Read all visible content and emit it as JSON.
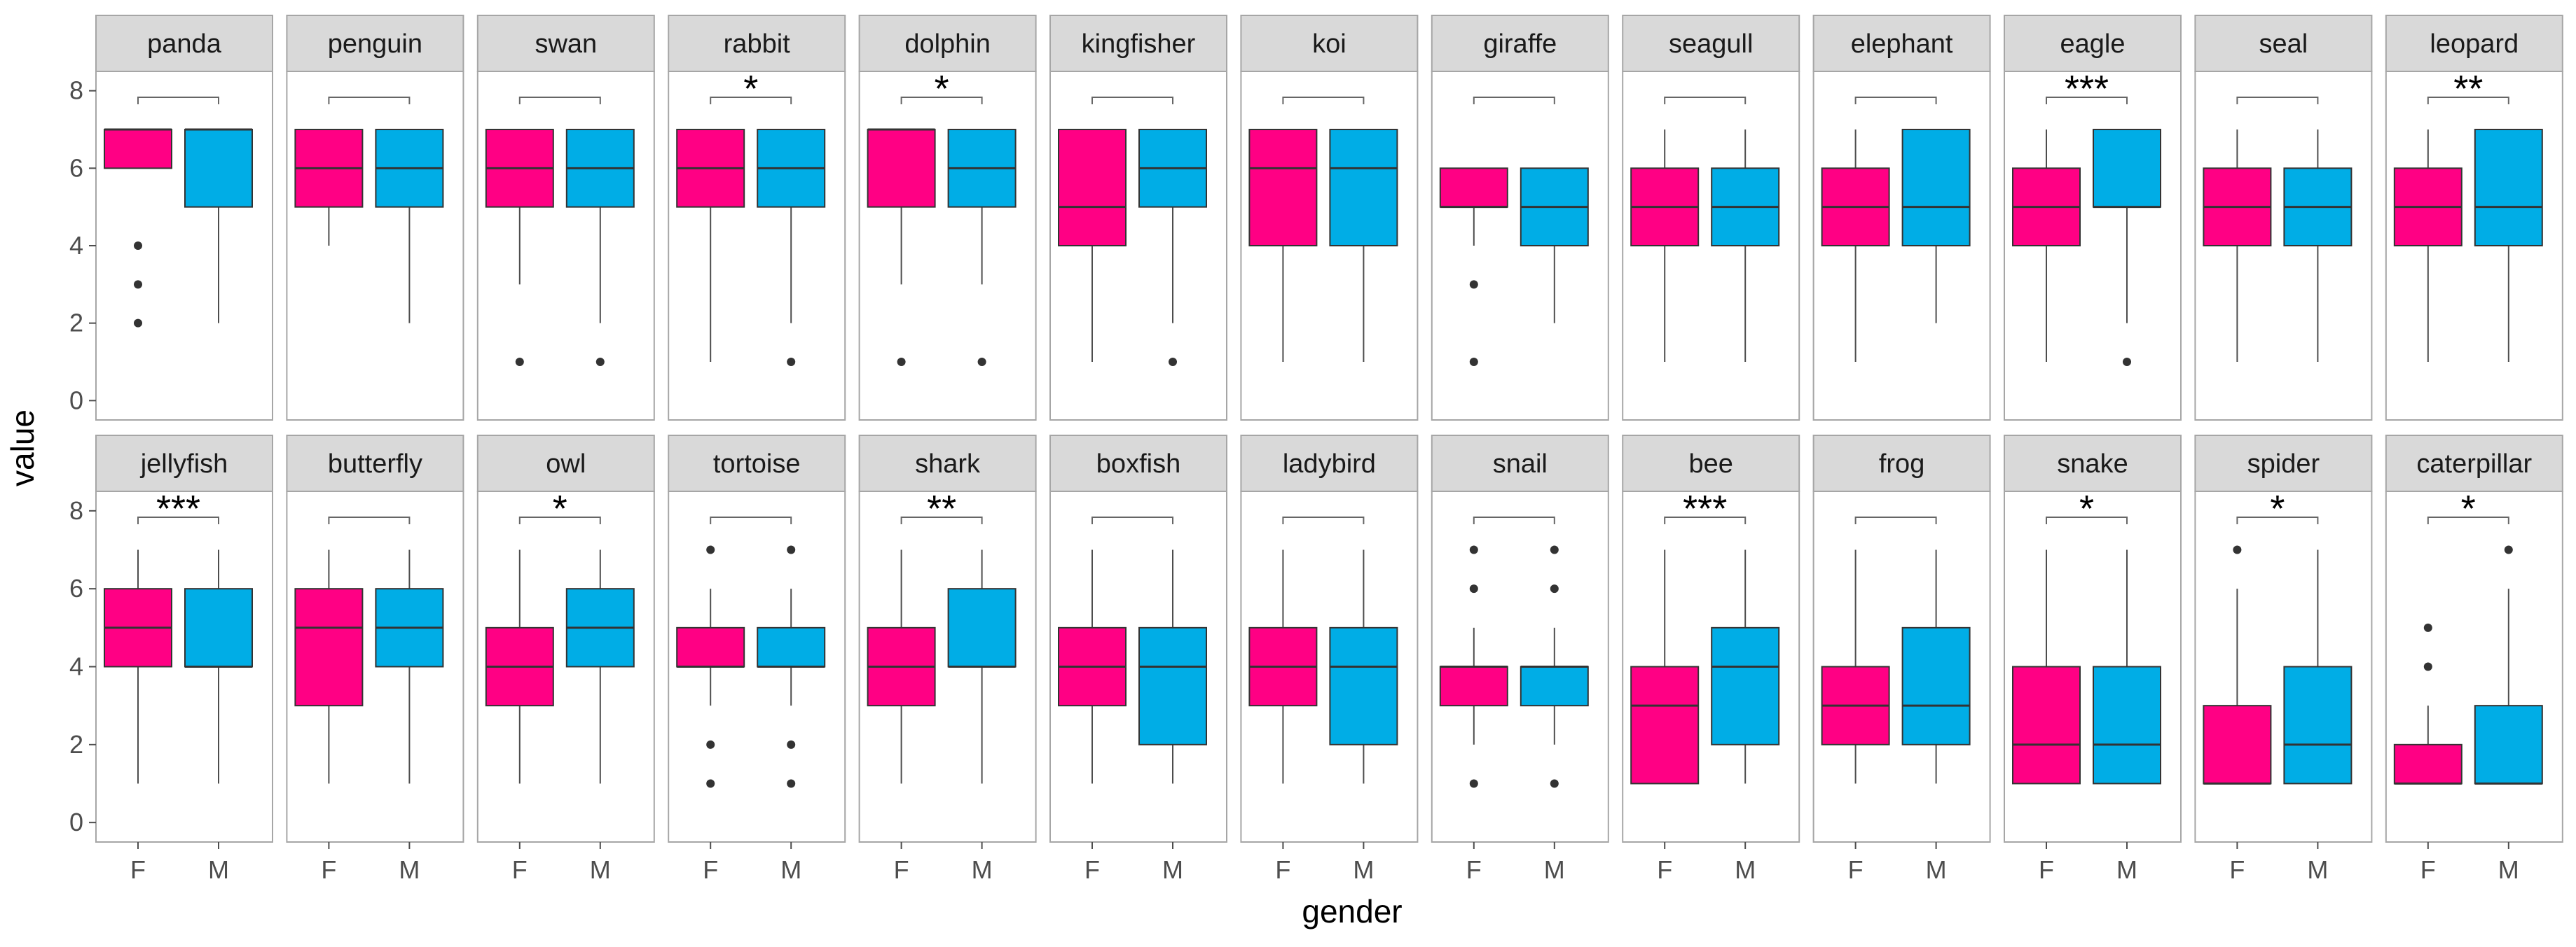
{
  "chart_data": {
    "type": "boxplot",
    "facet_layout": {
      "rows": 2,
      "cols": 13
    },
    "xlabel": "gender",
    "ylabel": "value",
    "categories": [
      "F",
      "M"
    ],
    "ylim": [
      -0.5,
      8.5
    ],
    "yticks": [
      0,
      2,
      4,
      6,
      8
    ],
    "colors": {
      "F": "#ff0084",
      "M": "#00ade6"
    },
    "panels": [
      {
        "name": "panda",
        "sig": "",
        "F": {
          "lower": 6,
          "q1": 6,
          "median": 7,
          "q3": 7,
          "upper": 7,
          "outliers": [
            2,
            3,
            4
          ]
        },
        "M": {
          "lower": 2,
          "q1": 5,
          "median": 7,
          "q3": 7,
          "upper": 7,
          "outliers": []
        }
      },
      {
        "name": "penguin",
        "sig": "",
        "F": {
          "lower": 4,
          "q1": 5,
          "median": 6,
          "q3": 7,
          "upper": 7,
          "outliers": []
        },
        "M": {
          "lower": 2,
          "q1": 5,
          "median": 6,
          "q3": 7,
          "upper": 7,
          "outliers": []
        }
      },
      {
        "name": "swan",
        "sig": "",
        "F": {
          "lower": 3,
          "q1": 5,
          "median": 6,
          "q3": 7,
          "upper": 7,
          "outliers": [
            1
          ]
        },
        "M": {
          "lower": 2,
          "q1": 5,
          "median": 6,
          "q3": 7,
          "upper": 7,
          "outliers": [
            1
          ]
        }
      },
      {
        "name": "rabbit",
        "sig": "*",
        "F": {
          "lower": 1,
          "q1": 5,
          "median": 6,
          "q3": 7,
          "upper": 7,
          "outliers": []
        },
        "M": {
          "lower": 2,
          "q1": 5,
          "median": 6,
          "q3": 7,
          "upper": 7,
          "outliers": [
            1
          ]
        }
      },
      {
        "name": "dolphin",
        "sig": "*",
        "F": {
          "lower": 3,
          "q1": 5,
          "median": 7,
          "q3": 7,
          "upper": 7,
          "outliers": [
            1
          ]
        },
        "M": {
          "lower": 3,
          "q1": 5,
          "median": 6,
          "q3": 7,
          "upper": 7,
          "outliers": [
            1
          ]
        }
      },
      {
        "name": "kingfisher",
        "sig": "",
        "F": {
          "lower": 1,
          "q1": 4,
          "median": 5,
          "q3": 7,
          "upper": 7,
          "outliers": []
        },
        "M": {
          "lower": 2,
          "q1": 5,
          "median": 6,
          "q3": 7,
          "upper": 7,
          "outliers": [
            1
          ]
        }
      },
      {
        "name": "koi",
        "sig": "",
        "F": {
          "lower": 1,
          "q1": 4,
          "median": 6,
          "q3": 7,
          "upper": 7,
          "outliers": []
        },
        "M": {
          "lower": 1,
          "q1": 4,
          "median": 6,
          "q3": 7,
          "upper": 7,
          "outliers": []
        }
      },
      {
        "name": "giraffe",
        "sig": "",
        "F": {
          "lower": 4,
          "q1": 5,
          "median": 5,
          "q3": 6,
          "upper": 6,
          "outliers": [
            1,
            3
          ]
        },
        "M": {
          "lower": 2,
          "q1": 4,
          "median": 5,
          "q3": 6,
          "upper": 6,
          "outliers": []
        }
      },
      {
        "name": "seagull",
        "sig": "",
        "F": {
          "lower": 1,
          "q1": 4,
          "median": 5,
          "q3": 6,
          "upper": 7,
          "outliers": []
        },
        "M": {
          "lower": 1,
          "q1": 4,
          "median": 5,
          "q3": 6,
          "upper": 7,
          "outliers": []
        }
      },
      {
        "name": "elephant",
        "sig": "",
        "F": {
          "lower": 1,
          "q1": 4,
          "median": 5,
          "q3": 6,
          "upper": 7,
          "outliers": []
        },
        "M": {
          "lower": 2,
          "q1": 4,
          "median": 5,
          "q3": 7,
          "upper": 7,
          "outliers": []
        }
      },
      {
        "name": "eagle",
        "sig": "***",
        "F": {
          "lower": 1,
          "q1": 4,
          "median": 5,
          "q3": 6,
          "upper": 7,
          "outliers": []
        },
        "M": {
          "lower": 2,
          "q1": 5,
          "median": 5,
          "q3": 7,
          "upper": 7,
          "outliers": [
            1
          ]
        }
      },
      {
        "name": "seal",
        "sig": "",
        "F": {
          "lower": 1,
          "q1": 4,
          "median": 5,
          "q3": 6,
          "upper": 7,
          "outliers": []
        },
        "M": {
          "lower": 1,
          "q1": 4,
          "median": 5,
          "q3": 6,
          "upper": 7,
          "outliers": []
        }
      },
      {
        "name": "leopard",
        "sig": "**",
        "F": {
          "lower": 1,
          "q1": 4,
          "median": 5,
          "q3": 6,
          "upper": 7,
          "outliers": []
        },
        "M": {
          "lower": 1,
          "q1": 4,
          "median": 5,
          "q3": 7,
          "upper": 7,
          "outliers": []
        }
      },
      {
        "name": "jellyfish",
        "sig": "***",
        "F": {
          "lower": 1,
          "q1": 4,
          "median": 5,
          "q3": 6,
          "upper": 7,
          "outliers": []
        },
        "M": {
          "lower": 1,
          "q1": 4,
          "median": 4,
          "q3": 6,
          "upper": 7,
          "outliers": []
        }
      },
      {
        "name": "butterfly",
        "sig": "",
        "F": {
          "lower": 1,
          "q1": 3,
          "median": 5,
          "q3": 6,
          "upper": 7,
          "outliers": []
        },
        "M": {
          "lower": 1,
          "q1": 4,
          "median": 5,
          "q3": 6,
          "upper": 7,
          "outliers": []
        }
      },
      {
        "name": "owl",
        "sig": "*",
        "F": {
          "lower": 1,
          "q1": 3,
          "median": 4,
          "q3": 5,
          "upper": 7,
          "outliers": []
        },
        "M": {
          "lower": 1,
          "q1": 4,
          "median": 5,
          "q3": 6,
          "upper": 7,
          "outliers": []
        }
      },
      {
        "name": "tortoise",
        "sig": "",
        "F": {
          "lower": 3,
          "q1": 4,
          "median": 4,
          "q3": 5,
          "upper": 6,
          "outliers": [
            1,
            2,
            7
          ]
        },
        "M": {
          "lower": 3,
          "q1": 4,
          "median": 4,
          "q3": 5,
          "upper": 6,
          "outliers": [
            1,
            2,
            7
          ]
        }
      },
      {
        "name": "shark",
        "sig": "**",
        "F": {
          "lower": 1,
          "q1": 3,
          "median": 4,
          "q3": 5,
          "upper": 7,
          "outliers": []
        },
        "M": {
          "lower": 1,
          "q1": 4,
          "median": 4,
          "q3": 6,
          "upper": 7,
          "outliers": []
        }
      },
      {
        "name": "boxfish",
        "sig": "",
        "F": {
          "lower": 1,
          "q1": 3,
          "median": 4,
          "q3": 5,
          "upper": 7,
          "outliers": []
        },
        "M": {
          "lower": 1,
          "q1": 2,
          "median": 4,
          "q3": 5,
          "upper": 7,
          "outliers": []
        }
      },
      {
        "name": "ladybird",
        "sig": "",
        "F": {
          "lower": 1,
          "q1": 3,
          "median": 4,
          "q3": 5,
          "upper": 7,
          "outliers": []
        },
        "M": {
          "lower": 1,
          "q1": 2,
          "median": 4,
          "q3": 5,
          "upper": 7,
          "outliers": []
        }
      },
      {
        "name": "snail",
        "sig": "",
        "F": {
          "lower": 2,
          "q1": 3,
          "median": 4,
          "q3": 4,
          "upper": 5,
          "outliers": [
            1,
            6,
            7
          ]
        },
        "M": {
          "lower": 2,
          "q1": 3,
          "median": 4,
          "q3": 4,
          "upper": 5,
          "outliers": [
            1,
            6,
            7
          ]
        }
      },
      {
        "name": "bee",
        "sig": "***",
        "F": {
          "lower": 1,
          "q1": 1,
          "median": 3,
          "q3": 4,
          "upper": 7,
          "outliers": []
        },
        "M": {
          "lower": 1,
          "q1": 2,
          "median": 4,
          "q3": 5,
          "upper": 7,
          "outliers": []
        }
      },
      {
        "name": "frog",
        "sig": "",
        "F": {
          "lower": 1,
          "q1": 2,
          "median": 3,
          "q3": 4,
          "upper": 7,
          "outliers": []
        },
        "M": {
          "lower": 1,
          "q1": 2,
          "median": 3,
          "q3": 5,
          "upper": 7,
          "outliers": []
        }
      },
      {
        "name": "snake",
        "sig": "*",
        "F": {
          "lower": 1,
          "q1": 1,
          "median": 2,
          "q3": 4,
          "upper": 7,
          "outliers": []
        },
        "M": {
          "lower": 1,
          "q1": 1,
          "median": 2,
          "q3": 4,
          "upper": 7,
          "outliers": []
        }
      },
      {
        "name": "spider",
        "sig": "*",
        "F": {
          "lower": 1,
          "q1": 1,
          "median": 1,
          "q3": 3,
          "upper": 6,
          "outliers": [
            7
          ]
        },
        "M": {
          "lower": 1,
          "q1": 1,
          "median": 2,
          "q3": 4,
          "upper": 7,
          "outliers": []
        }
      },
      {
        "name": "caterpillar",
        "sig": "*",
        "F": {
          "lower": 1,
          "q1": 1,
          "median": 1,
          "q3": 2,
          "upper": 3,
          "outliers": [
            4,
            5
          ]
        },
        "M": {
          "lower": 1,
          "q1": 1,
          "median": 1,
          "q3": 3,
          "upper": 6,
          "outliers": [
            7
          ]
        }
      }
    ]
  }
}
